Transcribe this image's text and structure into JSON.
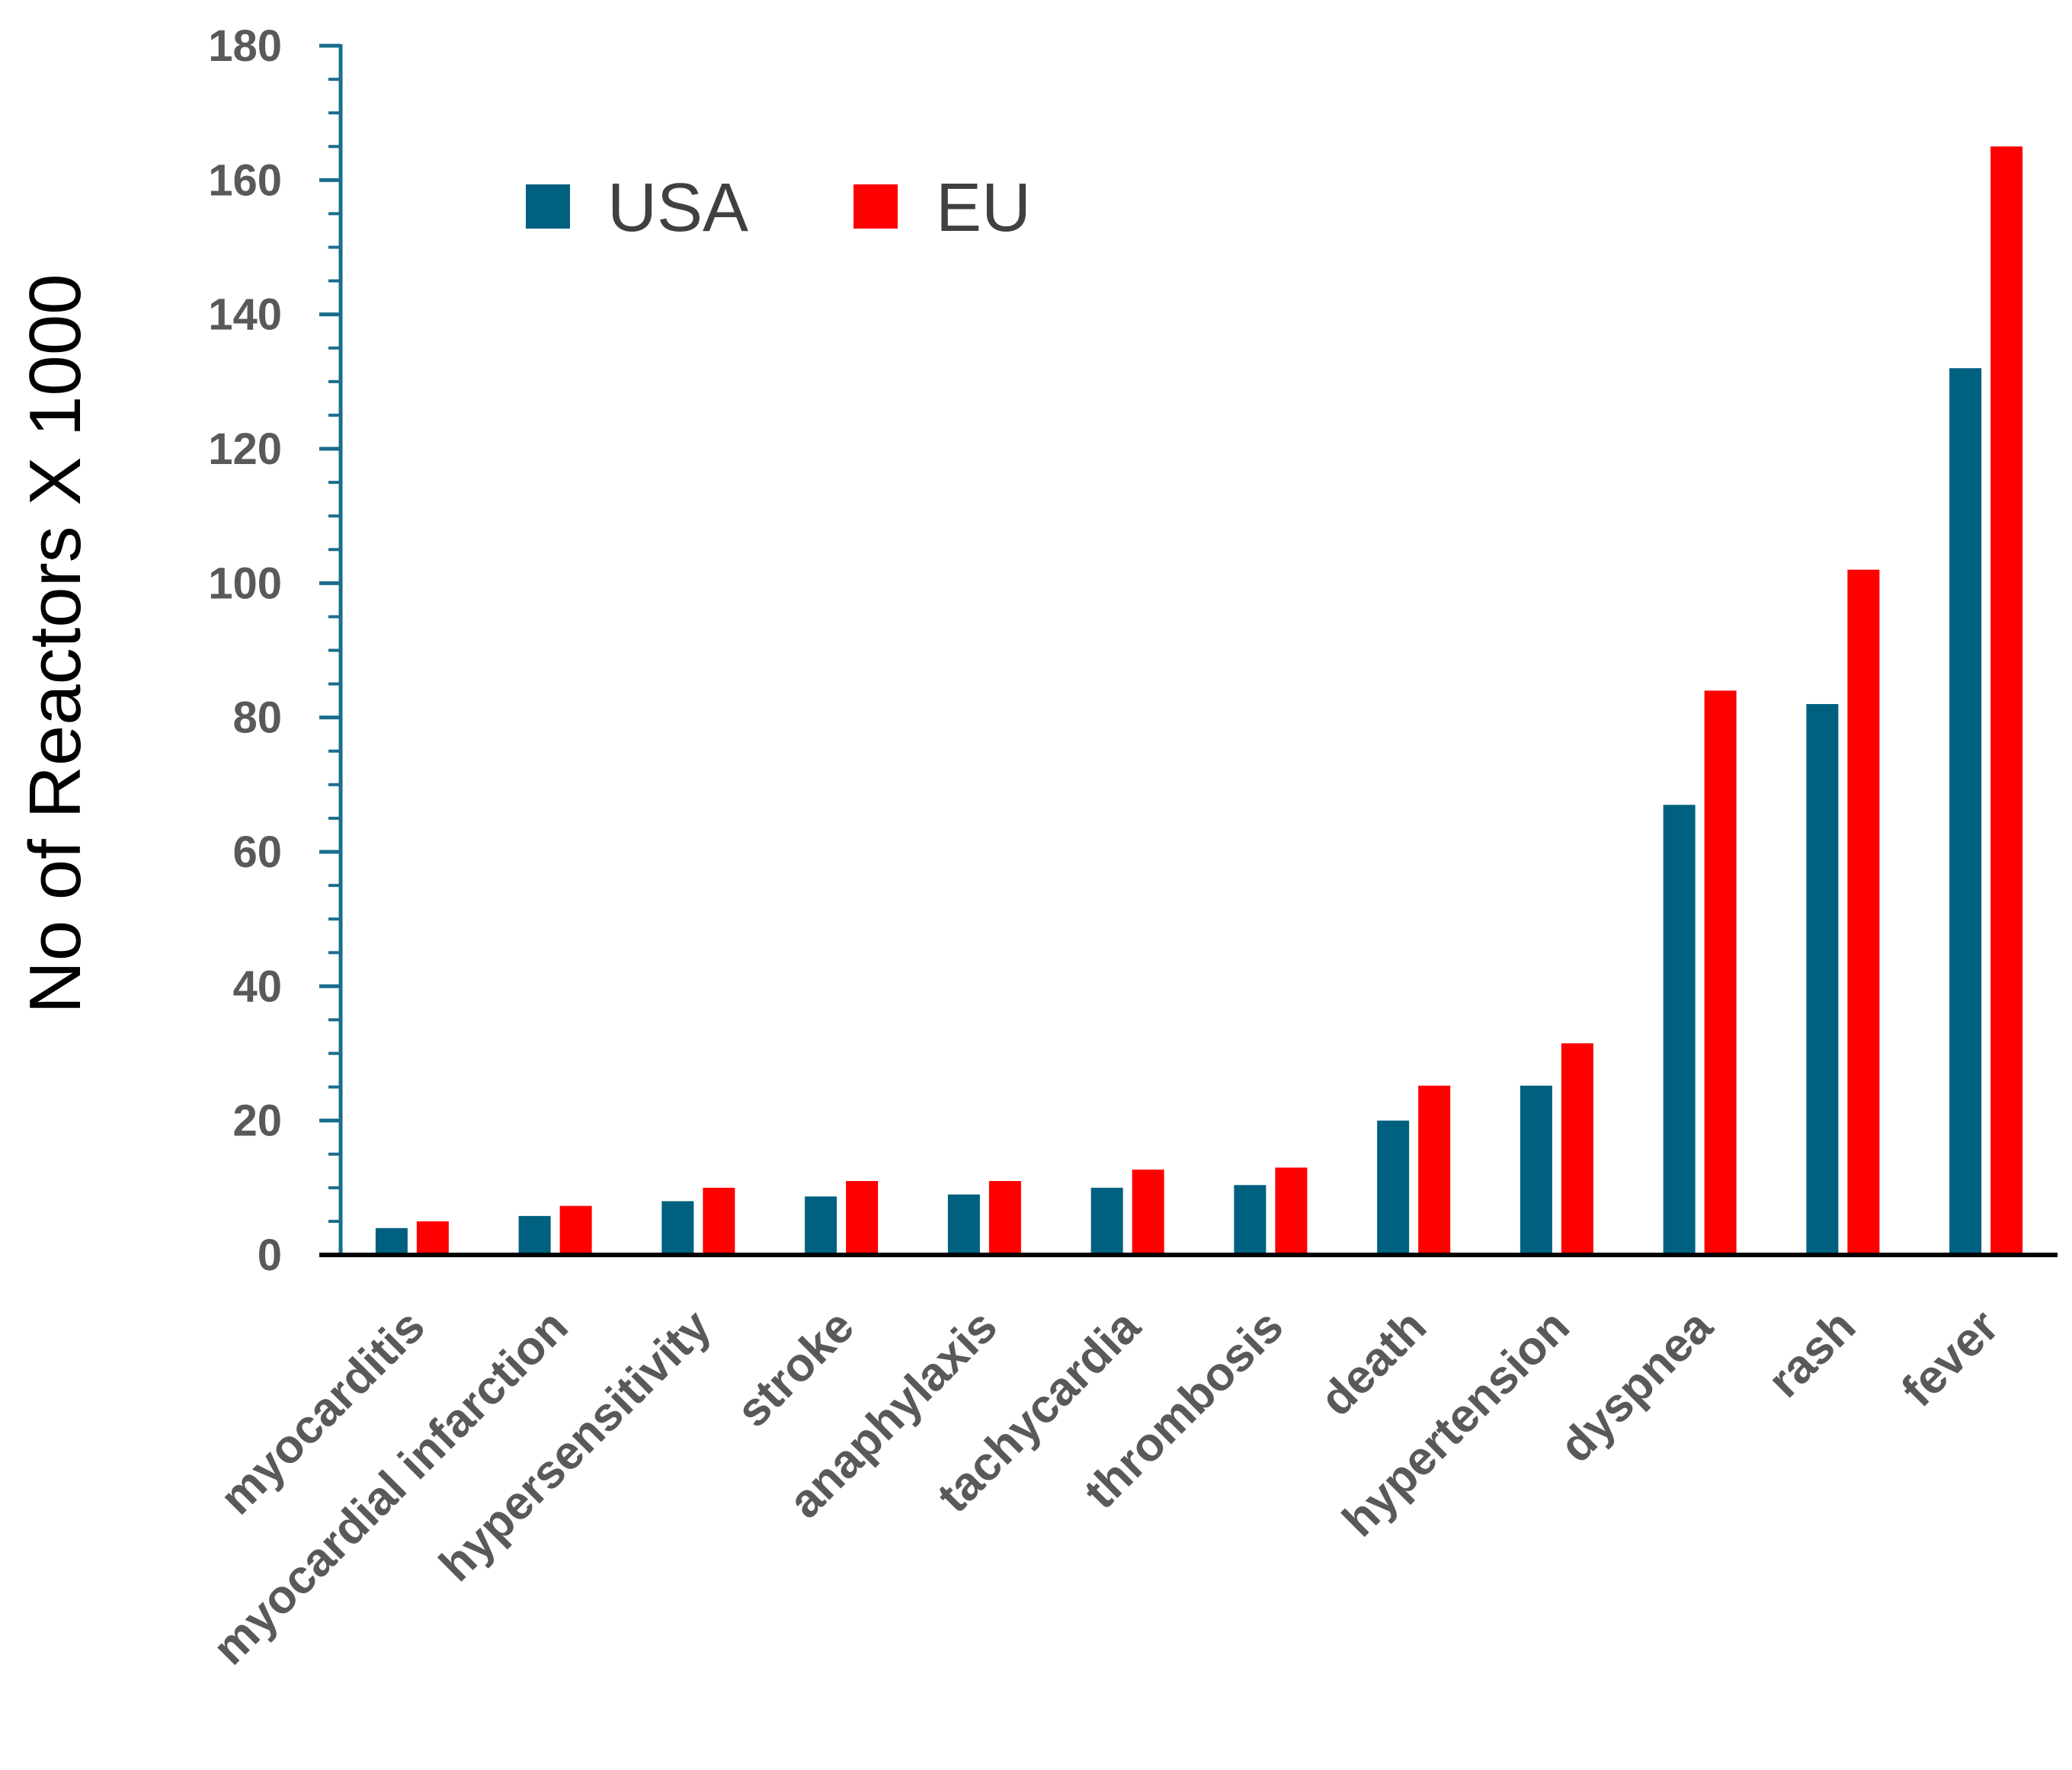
{
  "chart_data": {
    "type": "bar",
    "title": "",
    "xlabel": "",
    "ylabel": "No of Reactors X 1000",
    "ylim": [
      0,
      180
    ],
    "yticks": [
      0,
      20,
      40,
      60,
      80,
      100,
      120,
      140,
      160,
      180
    ],
    "minor_tick_step": 5,
    "grid": false,
    "legend_position": "top-left",
    "categories": [
      "myocarditis",
      "myocardial infarction",
      "hypersensitivity",
      "stroke",
      "anaphylaxis",
      "tachycardia",
      "thrombosis",
      "death",
      "hypertension",
      "dyspnea",
      "rash",
      "fever"
    ],
    "series": [
      {
        "name": "USA",
        "color": "#00607f",
        "values": [
          4.0,
          5.8,
          8.0,
          8.7,
          9.0,
          10.0,
          10.4,
          20.0,
          25.2,
          67.0,
          82.0,
          132.0
        ]
      },
      {
        "name": "EU",
        "color": "#ff0000",
        "values": [
          5.0,
          7.3,
          10.0,
          11.0,
          11.0,
          12.7,
          13.0,
          25.2,
          31.5,
          84.0,
          102.0,
          165.0
        ]
      }
    ],
    "colors": {
      "axis": "#1a6e8c",
      "tick_text": "#595959",
      "title_text": "#000000"
    }
  }
}
